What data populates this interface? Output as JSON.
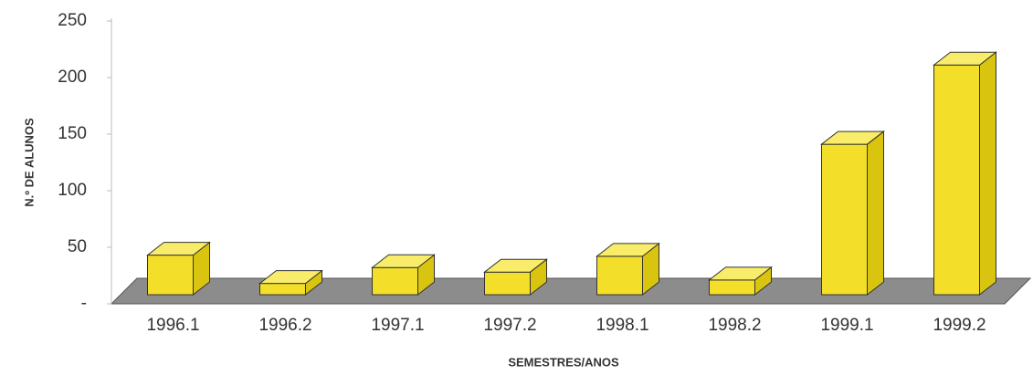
{
  "chart_data": {
    "type": "bar3d",
    "y_label": "N.º DE ALUNOS",
    "x_label": "SEMESTRES/ANOS",
    "categories": [
      "1996.1",
      "1996.2",
      "1997.1",
      "1997.2",
      "1998.1",
      "1998.2",
      "1999.1",
      "1999.2"
    ],
    "values": [
      35,
      10,
      24,
      20,
      34,
      13,
      133,
      203
    ],
    "color": "#f3df2a",
    "ylim": [
      0,
      250
    ],
    "yticks": [
      {
        "value": 0,
        "label": "-"
      },
      50,
      100,
      150,
      200,
      250
    ]
  }
}
